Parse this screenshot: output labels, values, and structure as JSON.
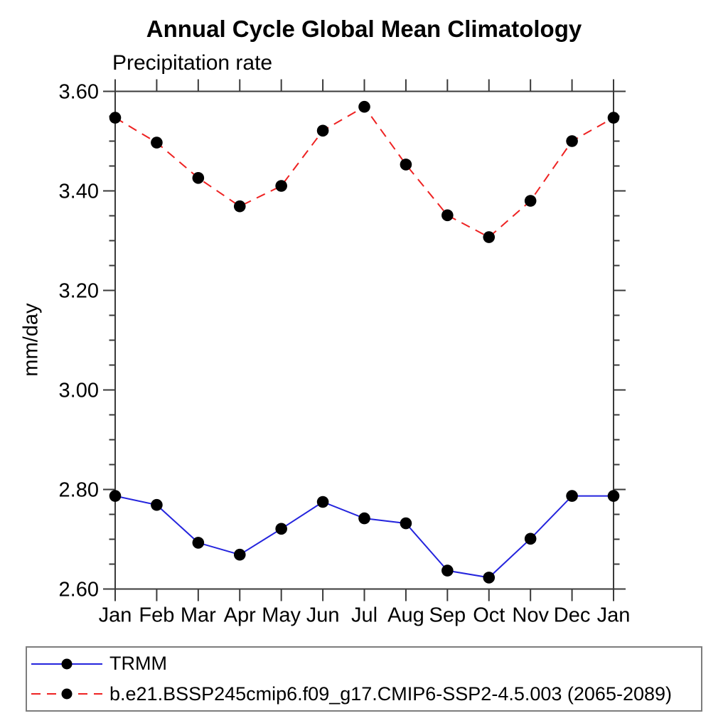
{
  "title": "Annual Cycle Global Mean Climatology",
  "subtitle": "Precipitation rate",
  "chart_data": {
    "type": "line",
    "categories": [
      "Jan",
      "Feb",
      "Mar",
      "Apr",
      "May",
      "Jun",
      "Jul",
      "Aug",
      "Sep",
      "Oct",
      "Nov",
      "Dec",
      "Jan"
    ],
    "ylabel": "mm/day",
    "ylim": [
      2.6,
      3.6
    ],
    "ytick_labels": [
      "2.60",
      "2.80",
      "3.00",
      "3.20",
      "3.40",
      "3.60"
    ],
    "ytick_major": 0.2,
    "ytick_minor": 0.05,
    "grid": false,
    "axis_color": "#3a3a3a",
    "marker_color": "#000000",
    "legend_position": "bottom-left-box",
    "series": [
      {
        "name": "TRMM",
        "color": "#2424dd",
        "line_style": "solid",
        "marker": "filled-circle",
        "values": [
          2.787,
          2.769,
          2.693,
          2.669,
          2.721,
          2.775,
          2.742,
          2.732,
          2.637,
          2.623,
          2.701,
          2.787,
          2.787
        ]
      },
      {
        "name": "b.e21.BSSP245cmip6.f09_g17.CMIP6-SSP2-4.5.003 (2065-2089)",
        "color": "#ee2222",
        "line_style": "dashed",
        "marker": "filled-circle",
        "values": [
          3.547,
          3.497,
          3.426,
          3.369,
          3.41,
          3.521,
          3.569,
          3.453,
          3.351,
          3.307,
          3.38,
          3.5,
          3.547
        ]
      }
    ]
  }
}
